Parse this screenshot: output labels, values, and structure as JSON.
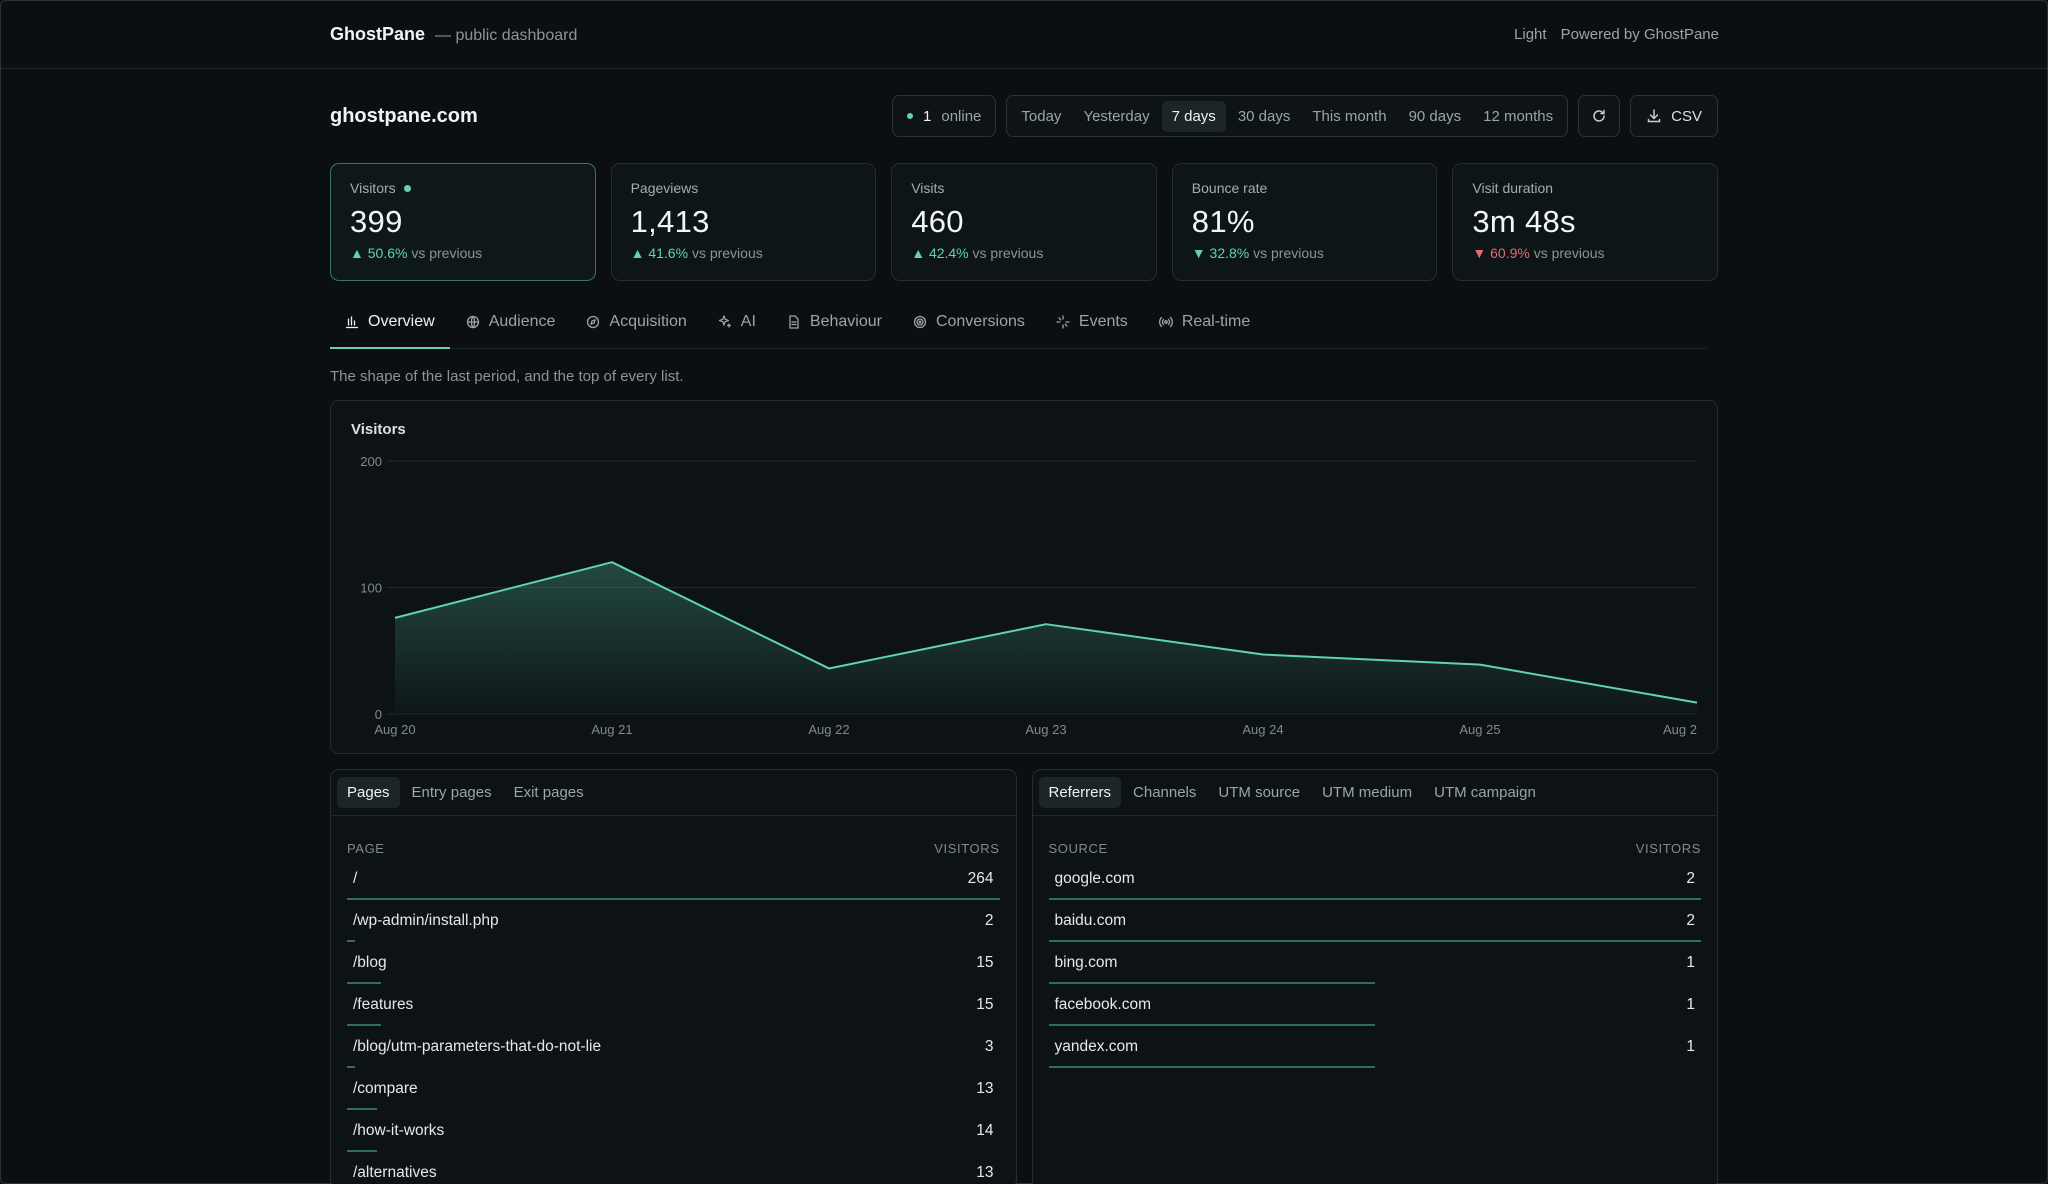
{
  "header": {
    "brand": "GhostPane",
    "subtitle": "— public dashboard",
    "theme_toggle": "Light",
    "powered": "Powered by GhostPane"
  },
  "site": {
    "name": "ghostpane.com",
    "online_count": "1",
    "online_label": "online"
  },
  "ranges": [
    "Today",
    "Yesterday",
    "7 days",
    "30 days",
    "This month",
    "90 days",
    "12 months"
  ],
  "active_range": "7 days",
  "csv_label": "CSV",
  "icons": {
    "refresh": "refresh-icon",
    "download": "download-icon"
  },
  "stats": [
    {
      "label": "Visitors",
      "value": "399",
      "delta": "50.6%",
      "dir": "up",
      "suffix": "vs previous",
      "active": true
    },
    {
      "label": "Pageviews",
      "value": "1,413",
      "delta": "41.6%",
      "dir": "up",
      "suffix": "vs previous"
    },
    {
      "label": "Visits",
      "value": "460",
      "delta": "42.4%",
      "dir": "up",
      "suffix": "vs previous"
    },
    {
      "label": "Bounce rate",
      "value": "81%",
      "delta": "32.8%",
      "dir": "down",
      "suffix": "vs previous"
    },
    {
      "label": "Visit duration",
      "value": "3m 48s",
      "delta": "60.9%",
      "dir": "down",
      "suffix": "vs previous",
      "negative": true
    }
  ],
  "tabs": [
    "Overview",
    "Audience",
    "Acquisition",
    "AI",
    "Behaviour",
    "Conversions",
    "Events",
    "Real-time"
  ],
  "tab_icons": [
    "bar-chart-icon",
    "globe-icon",
    "compass-icon",
    "sparkle-icon",
    "document-icon",
    "target-icon",
    "sparkle-burst-icon",
    "broadcast-icon"
  ],
  "description": "The shape of the last period, and the top of every list.",
  "chart_data": {
    "type": "area",
    "title": "Visitors",
    "x": [
      "Aug 20",
      "Aug 21",
      "Aug 22",
      "Aug 23",
      "Aug 24",
      "Aug 25",
      "Aug 2"
    ],
    "series": [
      {
        "values": [
          76,
          120,
          36,
          71,
          47,
          39,
          9
        ]
      }
    ],
    "ylim": [
      0,
      200
    ],
    "yticks": [
      "0",
      "100",
      "200"
    ],
    "grid": true,
    "color": "#5fd3b2"
  },
  "pages_panel": {
    "tabs": [
      "Pages",
      "Entry pages",
      "Exit pages"
    ],
    "col_left": "PAGE",
    "col_right": "VISITORS",
    "rows": [
      {
        "label": "/",
        "value": "264",
        "share": 1.0
      },
      {
        "label": "/wp-admin/install.php",
        "value": "2",
        "share": 0.012
      },
      {
        "label": "/blog",
        "value": "15",
        "share": 0.052
      },
      {
        "label": "/features",
        "value": "15",
        "share": 0.052
      },
      {
        "label": "/blog/utm-parameters-that-do-not-lie",
        "value": "3",
        "share": 0.012
      },
      {
        "label": "/compare",
        "value": "13",
        "share": 0.046
      },
      {
        "label": "/how-it-works",
        "value": "14",
        "share": 0.046
      },
      {
        "label": "/alternatives",
        "value": "13",
        "share": 0.046
      }
    ]
  },
  "sources_panel": {
    "tabs": [
      "Referrers",
      "Channels",
      "UTM source",
      "UTM medium",
      "UTM campaign"
    ],
    "col_left": "SOURCE",
    "col_right": "VISITORS",
    "rows": [
      {
        "label": "google.com",
        "value": "2",
        "share": 1.0
      },
      {
        "label": "baidu.com",
        "value": "2",
        "share": 1.0
      },
      {
        "label": "bing.com",
        "value": "1",
        "share": 0.5
      },
      {
        "label": "facebook.com",
        "value": "1",
        "share": 0.5
      },
      {
        "label": "yandex.com",
        "value": "1",
        "share": 0.5
      }
    ]
  }
}
